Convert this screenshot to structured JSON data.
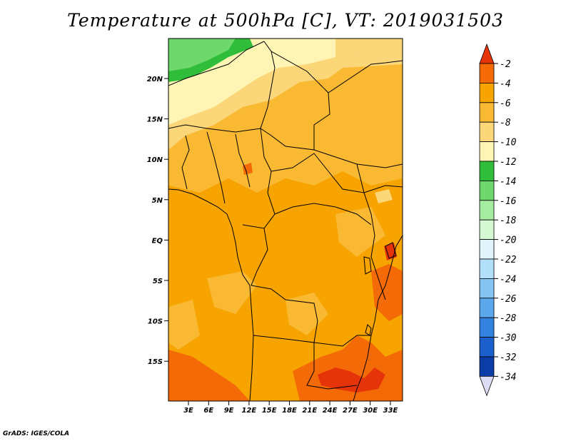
{
  "title": "Temperature at 500hPa [C], VT: 2019031503",
  "credit": "GrADS: IGES/COLA",
  "lat_ticks": [
    "20N",
    "15N",
    "10N",
    "5N",
    "EQ",
    "5S",
    "10S",
    "15S"
  ],
  "lon_ticks": [
    "3E",
    "6E",
    "9E",
    "12E",
    "15E",
    "18E",
    "21E",
    "24E",
    "27E",
    "30E",
    "33E"
  ],
  "colorbar": {
    "labels": [
      "-2",
      "-4",
      "-6",
      "-8",
      "-10",
      "-12",
      "-14",
      "-16",
      "-18",
      "-20",
      "-22",
      "-24",
      "-26",
      "-28",
      "-30",
      "-32",
      "-34"
    ],
    "colors": [
      "#e6340a",
      "#f46a07",
      "#f7a300",
      "#f9b933",
      "#fcd77a",
      "#fef5b5",
      "#2fbd3a",
      "#6fd86c",
      "#a5eba0",
      "#d4f8d2",
      "#e1f4fc",
      "#b3e0f9",
      "#86c5f3",
      "#5ba7ec",
      "#3382e0",
      "#1a5fcb",
      "#0c3da6",
      "#0b1575",
      "#dcdcf4"
    ]
  },
  "map_colors": {
    "base": "#f7a300",
    "warm": "#f46a07",
    "hot": "#e6340a",
    "mid": "#f9b933",
    "light": "#fcd77a",
    "pale": "#fef5b5",
    "green": "#2fbd3a",
    "ltgreen": "#6fd86c"
  }
}
